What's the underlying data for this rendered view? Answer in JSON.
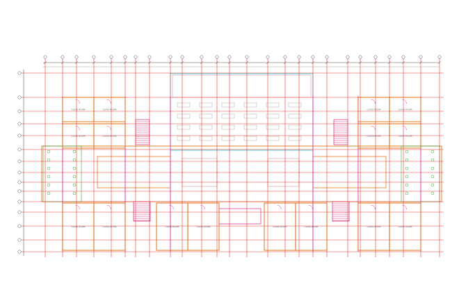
{
  "plan": {
    "rooms": [
      {
        "label": "CLASS ROOM"
      },
      {
        "label": "CLASS ROOM"
      },
      {
        "label": "CLASS ROOM"
      },
      {
        "label": "CLASS ROOM"
      },
      {
        "label": "CLASS ROOM"
      },
      {
        "label": "CLASS ROOM"
      },
      {
        "label": "CLASS ROOM"
      },
      {
        "label": "CLASS ROOM"
      },
      {
        "label": "CLASS ROOM"
      },
      {
        "label": "CLASS ROOM"
      },
      {
        "label": "CLASS ROOM"
      },
      {
        "label": "CLASS ROOM"
      },
      {
        "label": "CLASS ROOM"
      },
      {
        "label": "CLASS ROOM"
      },
      {
        "label": "CLASS ROOM"
      },
      {
        "label": "CLASS ROOM"
      }
    ]
  }
}
